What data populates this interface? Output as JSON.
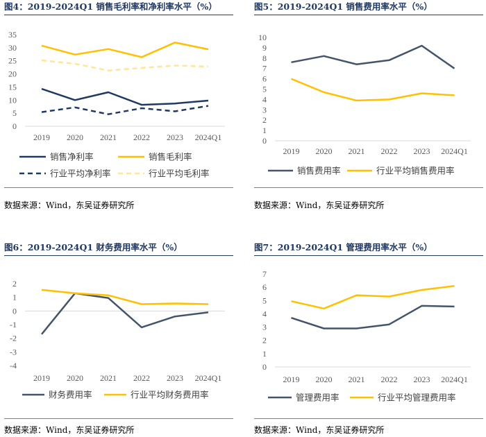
{
  "panels": [
    {
      "title": "图4：2019-2024Q1 销售毛利率和净利率水平（%）",
      "source": "数据来源：Wind，东吴证券研究所",
      "chart_data": {
        "type": "line",
        "categories": [
          "2019",
          "2020",
          "2021",
          "2022",
          "2023",
          "2024Q1"
        ],
        "ylim": [
          0,
          35
        ],
        "yticks": [
          0,
          5,
          10,
          15,
          20,
          25,
          30,
          35
        ],
        "grid": false,
        "legend_position": "bottom",
        "series": [
          {
            "name": "销售净利率",
            "values": [
              14.3,
              10.0,
              13.0,
              8.2,
              8.7,
              9.8
            ],
            "color": "#1f3864",
            "dash": "solid"
          },
          {
            "name": "销售毛利率",
            "values": [
              30.8,
              27.4,
              29.5,
              26.4,
              32.0,
              29.4
            ],
            "color": "#ffc000",
            "dash": "solid"
          },
          {
            "name": "行业平均净利率",
            "values": [
              5.4,
              7.2,
              4.6,
              6.9,
              5.7,
              7.8
            ],
            "color": "#1f3864",
            "dash": "dashed"
          },
          {
            "name": "行业平均毛利率",
            "values": [
              25.2,
              23.9,
              21.3,
              22.3,
              23.2,
              22.8
            ],
            "color": "#ffe699",
            "dash": "dashed"
          }
        ]
      }
    },
    {
      "title": "图5：2019-2024Q1 销售费用率水平（%）",
      "source": "数据来源：Wind，东吴证券研究所",
      "chart_data": {
        "type": "line",
        "categories": [
          "2019",
          "2020",
          "2021",
          "2022",
          "2023",
          "2024Q1"
        ],
        "ylim": [
          0,
          10
        ],
        "yticks": [
          0,
          1,
          2,
          3,
          4,
          5,
          6,
          7,
          8,
          9,
          10
        ],
        "grid": false,
        "legend_position": "bottom",
        "series": [
          {
            "name": "销售费用率",
            "values": [
              7.6,
              8.2,
              7.4,
              7.8,
              9.2,
              7.0
            ],
            "color": "#44546a",
            "dash": "solid"
          },
          {
            "name": "行业平均销售费用率",
            "values": [
              6.0,
              4.7,
              3.9,
              4.0,
              4.6,
              4.4
            ],
            "color": "#ffc000",
            "dash": "solid"
          }
        ]
      }
    },
    {
      "title": "图6：2019-2024Q1 财务费用率水平（%）",
      "source": "数据来源：Wind，东吴证券研究所",
      "chart_data": {
        "type": "line",
        "categories": [
          "2019",
          "2020",
          "2021",
          "2022",
          "2023",
          "2024Q1"
        ],
        "ylim": [
          -4,
          2
        ],
        "yticks": [
          -4,
          -3,
          -2,
          -1,
          0,
          1,
          2
        ],
        "grid": false,
        "legend_position": "bottom",
        "series": [
          {
            "name": "财务费用率",
            "values": [
              -1.7,
              1.3,
              0.95,
              -1.2,
              -0.4,
              -0.1
            ],
            "color": "#44546a",
            "dash": "solid"
          },
          {
            "name": "行业平均财务费用率",
            "values": [
              1.55,
              1.3,
              1.15,
              0.5,
              0.55,
              0.5
            ],
            "color": "#ffc000",
            "dash": "solid"
          }
        ]
      }
    },
    {
      "title": "图7：2019-2024Q1 管理费用率水平（%）",
      "source": "数据来源：Wind，东吴证券研究所",
      "chart_data": {
        "type": "line",
        "categories": [
          "2019",
          "2020",
          "2021",
          "2022",
          "2023",
          "2024Q1"
        ],
        "ylim": [
          0,
          7
        ],
        "yticks": [
          0,
          1,
          2,
          3,
          4,
          5,
          6,
          7
        ],
        "grid": false,
        "legend_position": "bottom",
        "series": [
          {
            "name": "管理费用率",
            "values": [
              3.7,
              2.9,
              2.9,
              3.2,
              4.6,
              4.55
            ],
            "color": "#44546a",
            "dash": "solid"
          },
          {
            "name": "行业平均管理费用率",
            "values": [
              4.95,
              4.4,
              5.4,
              5.3,
              5.8,
              6.1
            ],
            "color": "#ffc000",
            "dash": "solid"
          }
        ]
      }
    }
  ]
}
